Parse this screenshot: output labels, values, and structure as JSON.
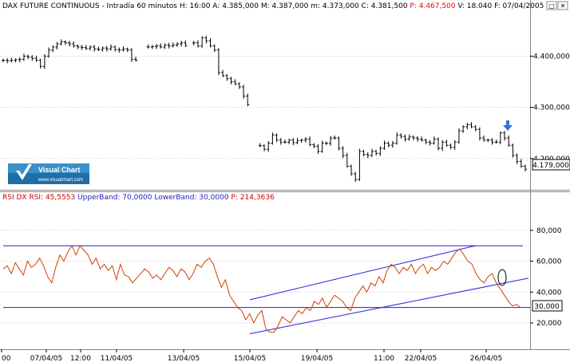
{
  "price_header": {
    "instrument": "DAX FUTURE CONTINUOUS",
    "sep1": " - ",
    "interval": "Intradía 60 minutos",
    "h_label": " H: ",
    "h_value": "16:00",
    "a_label": " A: ",
    "a_value": "4.385,000",
    "m_label": " M: ",
    "m_value": "4.387,000",
    "mn_label": " m: ",
    "mn_value": "4.373,000",
    "c_label": " C: ",
    "c_value": "4.381,500",
    "p_label": " P: ",
    "p_value": "4.467,500",
    "v_label": " V: ",
    "v_value": "18.040",
    "f_label": " F: ",
    "f_value": "07/04/2005"
  },
  "rsi_header": {
    "label": "RSI DX RSI: ",
    "value": "45,5553",
    "upper_label": " UpperBand: ",
    "upper_value": "70,0000",
    "lower_label": " LowerBand: ",
    "lower_value": "30,0000",
    "p_label": " P: ",
    "p_value": "214,3636"
  },
  "logo": {
    "name": "Visual Chart",
    "url": "www.visualchart.com"
  },
  "colors": {
    "price_bars": "#000000",
    "rsi_line": "#d04000",
    "bands": "#2020c8",
    "channel": "#2020e0",
    "header_red": "#ff0000",
    "arrow": "#3a6fd8"
  },
  "last_price_label": "4.179,000",
  "rsi_last_label": "30,000",
  "window_buttons": [
    "□",
    "✕"
  ],
  "icons": {
    "arrow": "down-arrow-icon",
    "ellipse": "circle-marker-icon"
  },
  "chart_data": [
    {
      "type": "ohlc",
      "title": "DAX FUTURE CONTINUOUS - Intradía 60 minutos",
      "y_ticks": [
        "4.400,000",
        "4.300,000",
        "4.200,000"
      ],
      "y_tick_values": [
        4400,
        4300,
        4200
      ],
      "ylim": [
        4142,
        4488
      ],
      "close_series": [
        4392,
        4391,
        4392,
        4393,
        4394,
        4400,
        4398,
        4396,
        4392,
        4380,
        4400,
        4412,
        4418,
        4424,
        4428,
        4426,
        4424,
        4420,
        4418,
        4417,
        4415,
        4418,
        4414,
        4413,
        4416,
        4414,
        4418,
        4413,
        4412,
        4414,
        4412,
        4394,
        4392,
        null,
        null,
        4418,
        4419,
        4420,
        4418,
        4422,
        4420,
        4422,
        4424,
        4426,
        4421,
        null,
        4426,
        4420,
        4436,
        4430,
        4420,
        4412,
        4368,
        4362,
        4356,
        4350,
        4346,
        4340,
        4322,
        4305,
        null,
        null,
        4225,
        4218,
        4230,
        4246,
        4236,
        4232,
        4232,
        4236,
        4231,
        4235,
        4236,
        4238,
        4227,
        4224,
        4214,
        4230,
        4230,
        4240,
        4240,
        4220,
        4206,
        4185,
        4170,
        4159,
        4214,
        4208,
        4206,
        4214,
        4210,
        4220,
        4230,
        4226,
        4230,
        4246,
        4243,
        4238,
        4242,
        4240,
        4238,
        4236,
        4232,
        4230,
        4238,
        4220,
        4232,
        4226,
        4222,
        4232,
        4254,
        4262,
        4266,
        4262,
        4257,
        4240,
        4236,
        4236,
        4232,
        4232,
        4250,
        4240,
        4226,
        4206,
        4194,
        4185,
        4179
      ],
      "annotation": "down arrow above bar near 4.255,000 (26/04/05)",
      "last_value": "4.179,000"
    },
    {
      "type": "line",
      "title": "RSI DX RSI: 45,5553 UpperBand: 70,0000 LowerBand: 30,0000 P: 214,3636",
      "y_ticks": [
        "80,000",
        "60,000",
        "40,000",
        "20,000"
      ],
      "y_tick_values": [
        80,
        60,
        40,
        20
      ],
      "ylim": [
        4,
        98
      ],
      "upper_band": 70,
      "lower_band": 30,
      "rsi_series": [
        55,
        57,
        52,
        59,
        55,
        51,
        60,
        56,
        58,
        62,
        57,
        50,
        46,
        56,
        64,
        60,
        66,
        70,
        64,
        70,
        67,
        64,
        58,
        62,
        55,
        58,
        54,
        57,
        48,
        58,
        51,
        50,
        46,
        49,
        52,
        55,
        53,
        49,
        51,
        48,
        52,
        56,
        54,
        50,
        55,
        53,
        48,
        52,
        58,
        56,
        60,
        62,
        58,
        50,
        43,
        48,
        38,
        34,
        30,
        28,
        22,
        26,
        20,
        25,
        28,
        16,
        14,
        14,
        18,
        24,
        22,
        20,
        24,
        28,
        26,
        30,
        28,
        34,
        32,
        36,
        30,
        34,
        38,
        36,
        34,
        30,
        28,
        36,
        40,
        44,
        40,
        46,
        44,
        50,
        46,
        54,
        58,
        56,
        52,
        56,
        54,
        58,
        52,
        56,
        58,
        52,
        56,
        54,
        56,
        60,
        58,
        62,
        66,
        68,
        64,
        60,
        58,
        52,
        48,
        46,
        50,
        52,
        46,
        42,
        38,
        34,
        31,
        32,
        30
      ],
      "channel_upper": [
        [
          0,
          35
        ],
        [
          1,
          70
        ]
      ],
      "channel_lower": [
        [
          0,
          13
        ],
        [
          1,
          49
        ]
      ],
      "annotation": "ellipse marker around RSI near 45",
      "last_value": "30,000"
    }
  ],
  "x_axis": {
    "labels": [
      "00",
      "07/04/05",
      "12:00",
      "11/04/05",
      "13/04/05",
      "15/04/05",
      "19/04/05",
      "11:00",
      "22/04/05",
      "26/04/05"
    ]
  }
}
